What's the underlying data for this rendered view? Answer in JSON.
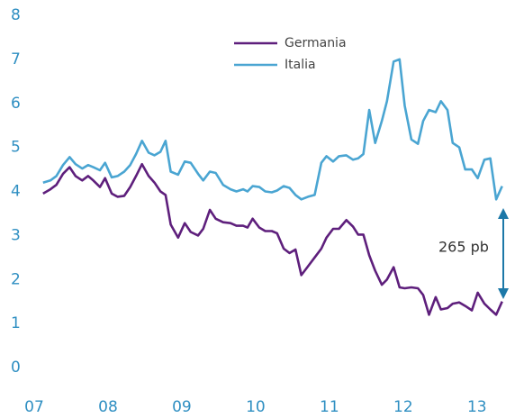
{
  "chart_data": {
    "type": "line",
    "x": [
      2007.12,
      2007.22,
      2007.3,
      2007.39,
      2007.48,
      2007.56,
      2007.65,
      2007.73,
      2007.8,
      2007.89,
      2007.96,
      2008.05,
      2008.13,
      2008.22,
      2008.3,
      2008.38,
      2008.46,
      2008.55,
      2008.63,
      2008.71,
      2008.78,
      2008.85,
      2008.95,
      2009.04,
      2009.12,
      2009.22,
      2009.29,
      2009.38,
      2009.46,
      2009.56,
      2009.66,
      2009.74,
      2009.83,
      2009.89,
      2009.96,
      2010.05,
      2010.13,
      2010.22,
      2010.29,
      2010.38,
      2010.46,
      2010.54,
      2010.62,
      2010.71,
      2010.8,
      2010.89,
      2010.96,
      2011.05,
      2011.13,
      2011.23,
      2011.32,
      2011.39,
      2011.46,
      2011.54,
      2011.62,
      2011.71,
      2011.78,
      2011.87,
      2011.95,
      2012.02,
      2012.11,
      2012.2,
      2012.27,
      2012.35,
      2012.44,
      2012.51,
      2012.6,
      2012.67,
      2012.76,
      2012.84,
      2012.93,
      2013.01,
      2013.1,
      2013.18,
      2013.26,
      2013.34
    ],
    "series": [
      {
        "name": "Germania",
        "color": "#5e1f7c",
        "values": [
          3.95,
          4.05,
          4.15,
          4.4,
          4.55,
          4.35,
          4.25,
          4.35,
          4.25,
          4.1,
          4.3,
          3.95,
          3.88,
          3.9,
          4.1,
          4.35,
          4.62,
          4.35,
          4.2,
          4.0,
          3.92,
          3.25,
          2.95,
          3.28,
          3.08,
          3.0,
          3.15,
          3.58,
          3.38,
          3.3,
          3.28,
          3.22,
          3.22,
          3.18,
          3.38,
          3.18,
          3.1,
          3.1,
          3.05,
          2.7,
          2.6,
          2.68,
          2.1,
          2.3,
          2.5,
          2.7,
          2.95,
          3.15,
          3.15,
          3.35,
          3.2,
          3.02,
          3.02,
          2.55,
          2.2,
          1.88,
          2.0,
          2.28,
          1.82,
          1.8,
          1.82,
          1.8,
          1.65,
          1.2,
          1.6,
          1.32,
          1.35,
          1.45,
          1.48,
          1.4,
          1.3,
          1.7,
          1.45,
          1.32,
          1.2,
          1.5
        ]
      },
      {
        "name": "Italia",
        "color": "#4aa5d2",
        "values": [
          4.2,
          4.25,
          4.35,
          4.6,
          4.78,
          4.62,
          4.52,
          4.6,
          4.55,
          4.48,
          4.65,
          4.32,
          4.35,
          4.45,
          4.6,
          4.85,
          5.15,
          4.88,
          4.82,
          4.9,
          5.15,
          4.45,
          4.38,
          4.68,
          4.65,
          4.4,
          4.25,
          4.45,
          4.42,
          4.15,
          4.05,
          4.0,
          4.05,
          4.0,
          4.12,
          4.1,
          4.0,
          3.98,
          4.02,
          4.12,
          4.08,
          3.92,
          3.82,
          3.88,
          3.92,
          4.65,
          4.8,
          4.68,
          4.8,
          4.82,
          4.72,
          4.75,
          4.85,
          5.85,
          5.1,
          5.6,
          6.05,
          6.95,
          7.0,
          5.95,
          5.18,
          5.08,
          5.6,
          5.85,
          5.8,
          6.05,
          5.85,
          5.1,
          5.0,
          4.5,
          4.5,
          4.3,
          4.72,
          4.75,
          3.82,
          4.12
        ]
      }
    ],
    "xlim": [
      2007,
      2013.6
    ],
    "xticks": [
      {
        "value": 2007,
        "label": "07"
      },
      {
        "value": 2008,
        "label": "08"
      },
      {
        "value": 2009,
        "label": "09"
      },
      {
        "value": 2010,
        "label": "10"
      },
      {
        "value": 2011,
        "label": "11"
      },
      {
        "value": 2012,
        "label": "12"
      },
      {
        "value": 2013,
        "label": "13"
      }
    ],
    "ylim": [
      0,
      8
    ],
    "yticks": [
      0,
      1,
      2,
      3,
      4,
      5,
      6,
      7,
      8
    ],
    "annotation": "265 pb",
    "legend": "top"
  }
}
